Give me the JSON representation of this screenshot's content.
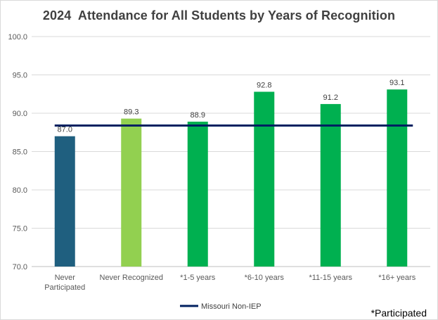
{
  "chart_data": {
    "type": "bar",
    "title": "2024  Attendance for All Students by Years of Recognition",
    "xlabel": "",
    "ylabel": "",
    "ylim": [
      70,
      100
    ],
    "yticks": [
      "70.0",
      "75.0",
      "80.0",
      "85.0",
      "90.0",
      "95.0",
      "100.0"
    ],
    "grid": true,
    "categories": [
      [
        "Never",
        "Participated"
      ],
      [
        "Never Recognized"
      ],
      [
        "*1-5 years"
      ],
      [
        "*6-10 years"
      ],
      [
        "*11-15 years"
      ],
      [
        "*16+ years"
      ]
    ],
    "values": [
      87.0,
      89.3,
      88.9,
      92.8,
      91.2,
      93.1
    ],
    "value_labels": [
      "87.0",
      "89.3",
      "88.9",
      "92.8",
      "91.2",
      "93.1"
    ],
    "bar_colors": [
      "#1f5f7f",
      "#92d050",
      "#00b050",
      "#00b050",
      "#00b050",
      "#00b050"
    ],
    "reference_line": {
      "name": "Missouri Non-IEP",
      "value": 88.4,
      "color": "#002060"
    },
    "legend_position": "bottom"
  },
  "footnote": "*Participated"
}
